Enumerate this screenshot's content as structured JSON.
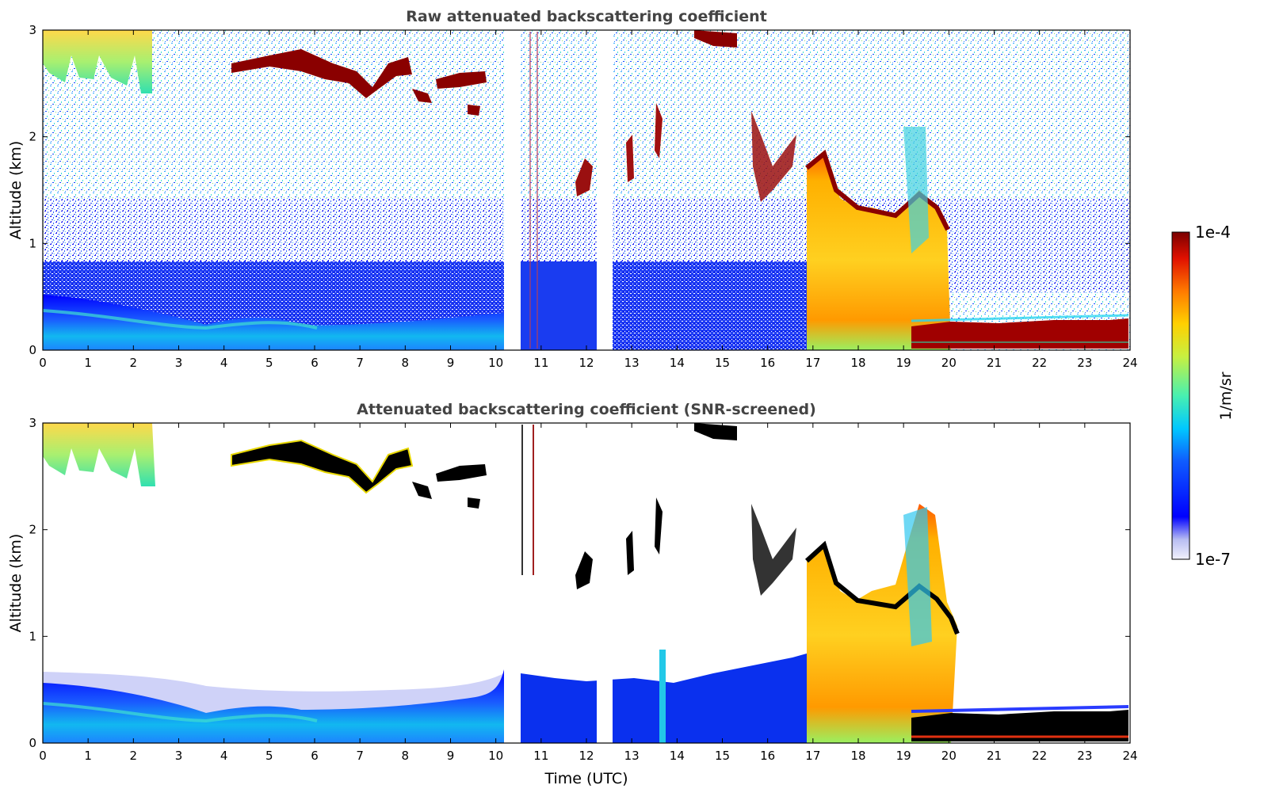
{
  "chart_data": [
    {
      "type": "heatmap",
      "title": "Raw attenuated backscattering coefficient",
      "xlabel": "",
      "ylabel": "Altitude (km)",
      "xlim": [
        0,
        24
      ],
      "ylim": [
        0,
        3
      ],
      "x_ticks": [
        "0",
        "1",
        "2",
        "3",
        "4",
        "5",
        "6",
        "7",
        "8",
        "9",
        "10",
        "11",
        "12",
        "13",
        "14",
        "15",
        "16",
        "17",
        "18",
        "19",
        "20",
        "21",
        "22",
        "23",
        "24"
      ],
      "y_ticks": [
        "0",
        "1",
        "2",
        "3"
      ],
      "data_gaps_utc": [
        [
          10.2,
          10.55
        ],
        [
          12.25,
          12.6
        ]
      ],
      "features": [
        {
          "type": "boundary_layer",
          "x_range": [
            0,
            16.8
          ],
          "top_km": [
            0.5,
            0.35,
            0.25,
            0.3,
            0.35,
            0.4
          ]
        },
        {
          "type": "cloud_layer",
          "x_range": [
            4.2,
            9.8
          ],
          "alt_km": [
            2.3,
            2.8
          ]
        },
        {
          "type": "dense_cloud",
          "x_range": [
            16.8,
            20.2
          ],
          "alt_km": [
            0,
            1.8
          ]
        },
        {
          "type": "low_cloud",
          "x_range": [
            19.3,
            24
          ],
          "alt_km": [
            0.05,
            0.25
          ]
        }
      ],
      "grid": false
    },
    {
      "type": "heatmap",
      "title": "Attenuated backscattering coefficient (SNR-screened)",
      "xlabel": "Time (UTC)",
      "ylabel": "Altitude (km)",
      "xlim": [
        0,
        24
      ],
      "ylim": [
        0,
        3
      ],
      "x_ticks": [
        "0",
        "1",
        "2",
        "3",
        "4",
        "5",
        "6",
        "7",
        "8",
        "9",
        "10",
        "11",
        "12",
        "13",
        "14",
        "15",
        "16",
        "17",
        "18",
        "19",
        "20",
        "21",
        "22",
        "23",
        "24"
      ],
      "y_ticks": [
        "0",
        "1",
        "2",
        "3"
      ],
      "data_gaps_utc": [
        [
          10.2,
          10.55
        ],
        [
          12.25,
          12.6
        ]
      ],
      "grid": false
    }
  ],
  "colorbar": {
    "label": "1/m/sr",
    "max_label": "1e-4",
    "min_label": "1e-7",
    "scale": "log",
    "colormap": "jet",
    "range": [
      1e-07,
      0.0001
    ]
  }
}
